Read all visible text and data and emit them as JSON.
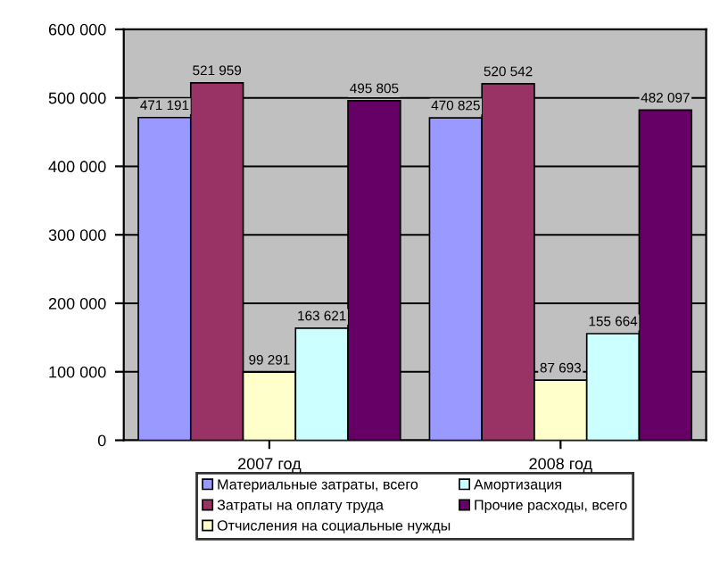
{
  "chart_data": {
    "type": "bar",
    "categories": [
      "2007 год",
      "2008 год"
    ],
    "series": [
      {
        "name": "Материальные затраты, всего",
        "color": "#9999ff",
        "values": [
          471191,
          470825
        ],
        "value_labels": [
          "471 191",
          "470 825"
        ]
      },
      {
        "name": "Затраты на оплату труда",
        "color": "#993366",
        "values": [
          521959,
          520542
        ],
        "value_labels": [
          "521 959",
          "520 542"
        ]
      },
      {
        "name": "Отчисления на социальные нужды",
        "color": "#ffffcc",
        "values": [
          99291,
          87693
        ],
        "value_labels": [
          "99 291",
          "87 693"
        ]
      },
      {
        "name": "Амортизация",
        "color": "#ccffff",
        "values": [
          163621,
          155664
        ],
        "value_labels": [
          "163 621",
          "155 664"
        ]
      },
      {
        "name": "Прочие расходы, всего",
        "color": "#660066",
        "values": [
          495805,
          482097
        ],
        "value_labels": [
          "495 805",
          "482 097"
        ]
      }
    ],
    "ylim": [
      0,
      600000
    ],
    "yticks": [
      0,
      {
        "value": 100000,
        "label": "100 000"
      },
      {
        "value": 200000,
        "label": "200 000"
      },
      {
        "value": 300000,
        "label": "300 000"
      },
      {
        "value": 400000,
        "label": "400 000"
      },
      {
        "value": 500000,
        "label": "500 000"
      },
      {
        "value": 600000,
        "label": "600 000"
      }
    ],
    "grid": "y",
    "legend": "bottom"
  }
}
